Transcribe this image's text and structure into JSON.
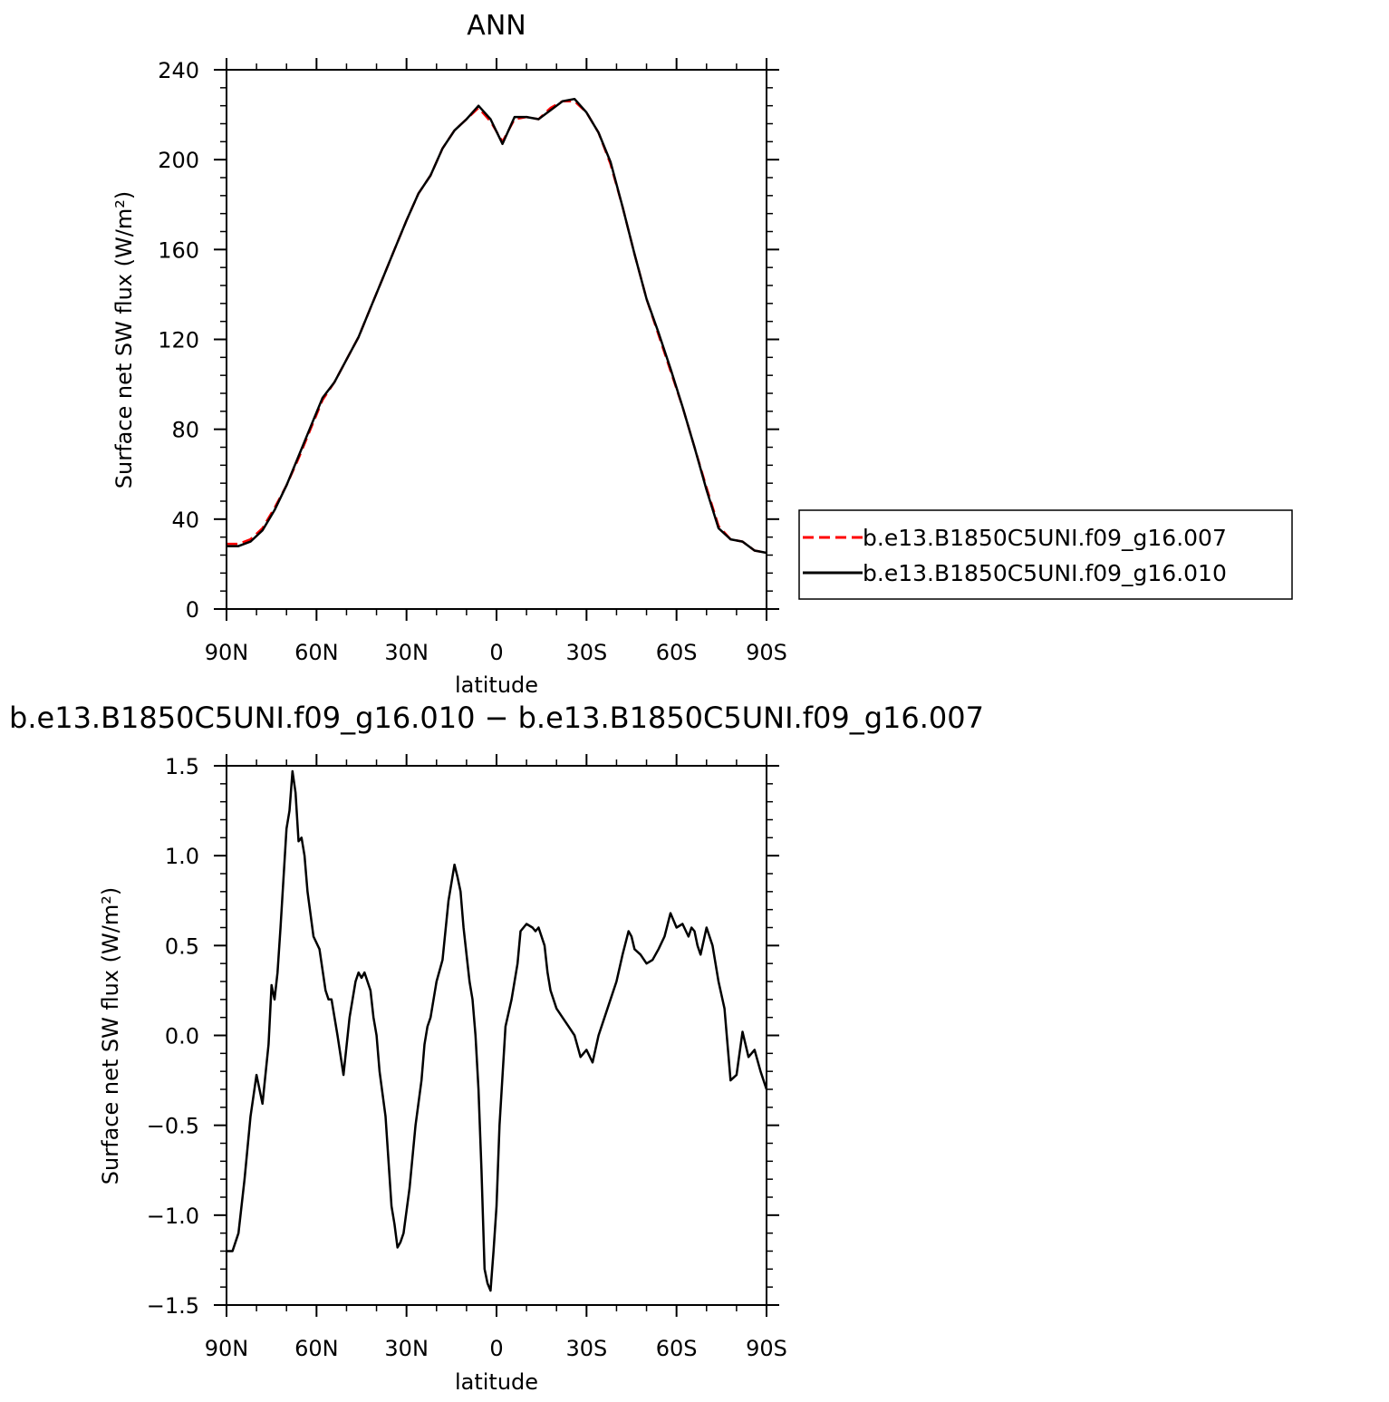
{
  "chart_data": [
    {
      "type": "line",
      "title": "ANN",
      "xlabel": "latitude",
      "ylabel": "Surface net SW flux (W/m²)",
      "x_reversed": true,
      "xlim": [
        -90,
        90
      ],
      "ylim": [
        0,
        240
      ],
      "xticks": [
        90,
        60,
        30,
        0,
        -30,
        -60,
        -90
      ],
      "xtick_labels": [
        "90N",
        "60N",
        "30N",
        "0",
        "30S",
        "60S",
        "90S"
      ],
      "yticks": [
        0,
        40,
        80,
        120,
        160,
        200,
        240
      ],
      "ytick_labels": [
        "0",
        "40",
        "80",
        "120",
        "160",
        "200",
        "240"
      ],
      "grid": false,
      "legend": "right",
      "series": [
        {
          "name": "b.e13.B1850C5UNI.f09_g16.007",
          "color": "#ff0000",
          "style": "dashed",
          "x": [
            90,
            86,
            82,
            78,
            74,
            70,
            66,
            62,
            58,
            54,
            50,
            46,
            42,
            38,
            34,
            30,
            26,
            22,
            18,
            14,
            10,
            6,
            2,
            -2,
            -6,
            -10,
            -14,
            -18,
            -22,
            -26,
            -30,
            -34,
            -38,
            -42,
            -46,
            -50,
            -54,
            -58,
            -62,
            -66,
            -70,
            -74,
            -78,
            -82,
            -86,
            -90
          ],
          "values": [
            29,
            29,
            31,
            36,
            45,
            55,
            67,
            80,
            93,
            101,
            111,
            121,
            134,
            147,
            160,
            173,
            185,
            193,
            205,
            213,
            218,
            223,
            217,
            208,
            218,
            219,
            218,
            223,
            226,
            226,
            221,
            212,
            198,
            179,
            158,
            138,
            122,
            106,
            90,
            72,
            54,
            37,
            31,
            30,
            26,
            25
          ]
        },
        {
          "name": "b.e13.B1850C5UNI.f09_g16.010",
          "color": "#000000",
          "style": "solid",
          "x": [
            90,
            86,
            82,
            78,
            74,
            70,
            66,
            62,
            58,
            54,
            50,
            46,
            42,
            38,
            34,
            30,
            26,
            22,
            18,
            14,
            10,
            6,
            2,
            -2,
            -6,
            -10,
            -14,
            -18,
            -22,
            -26,
            -30,
            -34,
            -38,
            -42,
            -46,
            -50,
            -54,
            -58,
            -62,
            -66,
            -70,
            -74,
            -78,
            -82,
            -86,
            -90
          ],
          "values": [
            28,
            28,
            30,
            35,
            44,
            55,
            68,
            81,
            94,
            101,
            111,
            121,
            134,
            147,
            160,
            173,
            185,
            193,
            205,
            213,
            218,
            224,
            218,
            207,
            219,
            219,
            218,
            222,
            226,
            227,
            221,
            212,
            199,
            179,
            158,
            138,
            123,
            107,
            90,
            72,
            53,
            36,
            31,
            30,
            26,
            25
          ]
        }
      ]
    },
    {
      "type": "line",
      "title": "b.e13.B1850C5UNI.f09_g16.010 − b.e13.B1850C5UNI.f09_g16.007",
      "xlabel": "latitude",
      "ylabel": "Surface net SW flux (W/m²)",
      "x_reversed": true,
      "xlim": [
        -90,
        90
      ],
      "ylim": [
        -1.5,
        1.5
      ],
      "xticks": [
        90,
        60,
        30,
        0,
        -30,
        -60,
        -90
      ],
      "xtick_labels": [
        "90N",
        "60N",
        "30N",
        "0",
        "30S",
        "60S",
        "90S"
      ],
      "yticks": [
        -1.5,
        -1.0,
        -0.5,
        0.0,
        0.5,
        1.0,
        1.5
      ],
      "ytick_labels": [
        "−1.5",
        "−1.0",
        "−0.5",
        "0.0",
        "0.5",
        "1.0",
        "1.5"
      ],
      "grid": false,
      "series": [
        {
          "color": "#000000",
          "style": "solid",
          "x": [
            90,
            88,
            86,
            84,
            82,
            80,
            78,
            76,
            75,
            74,
            73,
            72,
            70,
            69,
            68,
            67,
            66,
            65,
            64,
            63,
            61,
            59,
            57,
            56,
            55,
            53,
            51,
            49,
            47,
            46,
            45,
            44,
            43,
            42,
            41,
            40,
            39,
            37,
            35,
            34,
            33,
            32,
            31,
            29,
            27,
            25,
            24,
            23,
            22,
            21,
            20,
            18,
            16,
            14,
            13,
            12,
            11,
            10,
            9,
            8,
            7,
            6,
            5,
            4,
            3,
            2,
            1,
            0,
            -1,
            -3,
            -5,
            -6,
            -7,
            -8,
            -10,
            -12,
            -13,
            -14,
            -16,
            -17,
            -18,
            -20,
            -22,
            -24,
            -26,
            -28,
            -30,
            -32,
            -34,
            -36,
            -38,
            -40,
            -42,
            -44,
            -45,
            -46,
            -48,
            -50,
            -52,
            -54,
            -56,
            -58,
            -60,
            -62,
            -64,
            -65,
            -66,
            -67,
            -68,
            -70,
            -72,
            -74,
            -76,
            -78,
            -80,
            -82,
            -84,
            -86,
            -88,
            -90
          ],
          "values": [
            -1.2,
            -1.2,
            -1.1,
            -0.8,
            -0.45,
            -0.22,
            -0.38,
            -0.05,
            0.28,
            0.2,
            0.35,
            0.6,
            1.15,
            1.25,
            1.47,
            1.35,
            1.08,
            1.1,
            1.0,
            0.8,
            0.55,
            0.48,
            0.25,
            0.2,
            0.2,
            0.0,
            -0.22,
            0.1,
            0.3,
            0.35,
            0.32,
            0.35,
            0.3,
            0.25,
            0.1,
            0.0,
            -0.2,
            -0.45,
            -0.95,
            -1.05,
            -1.18,
            -1.15,
            -1.1,
            -0.85,
            -0.5,
            -0.25,
            -0.05,
            0.05,
            0.1,
            0.2,
            0.3,
            0.42,
            0.75,
            0.95,
            0.88,
            0.8,
            0.6,
            0.45,
            0.3,
            0.2,
            0.0,
            -0.3,
            -0.75,
            -1.3,
            -1.38,
            -1.42,
            -1.2,
            -0.95,
            -0.5,
            0.05,
            0.2,
            0.3,
            0.4,
            0.58,
            0.62,
            0.6,
            0.58,
            0.6,
            0.5,
            0.35,
            0.25,
            0.15,
            0.1,
            0.05,
            0.0,
            -0.12,
            -0.08,
            -0.15,
            0.0,
            0.1,
            0.2,
            0.3,
            0.45,
            0.58,
            0.55,
            0.48,
            0.45,
            0.4,
            0.42,
            0.48,
            0.55,
            0.68,
            0.6,
            0.62,
            0.55,
            0.6,
            0.58,
            0.5,
            0.45,
            0.6,
            0.5,
            0.3,
            0.15,
            -0.25,
            -0.22,
            0.02,
            -0.12,
            -0.08,
            -0.2,
            -0.3
          ]
        }
      ]
    }
  ]
}
